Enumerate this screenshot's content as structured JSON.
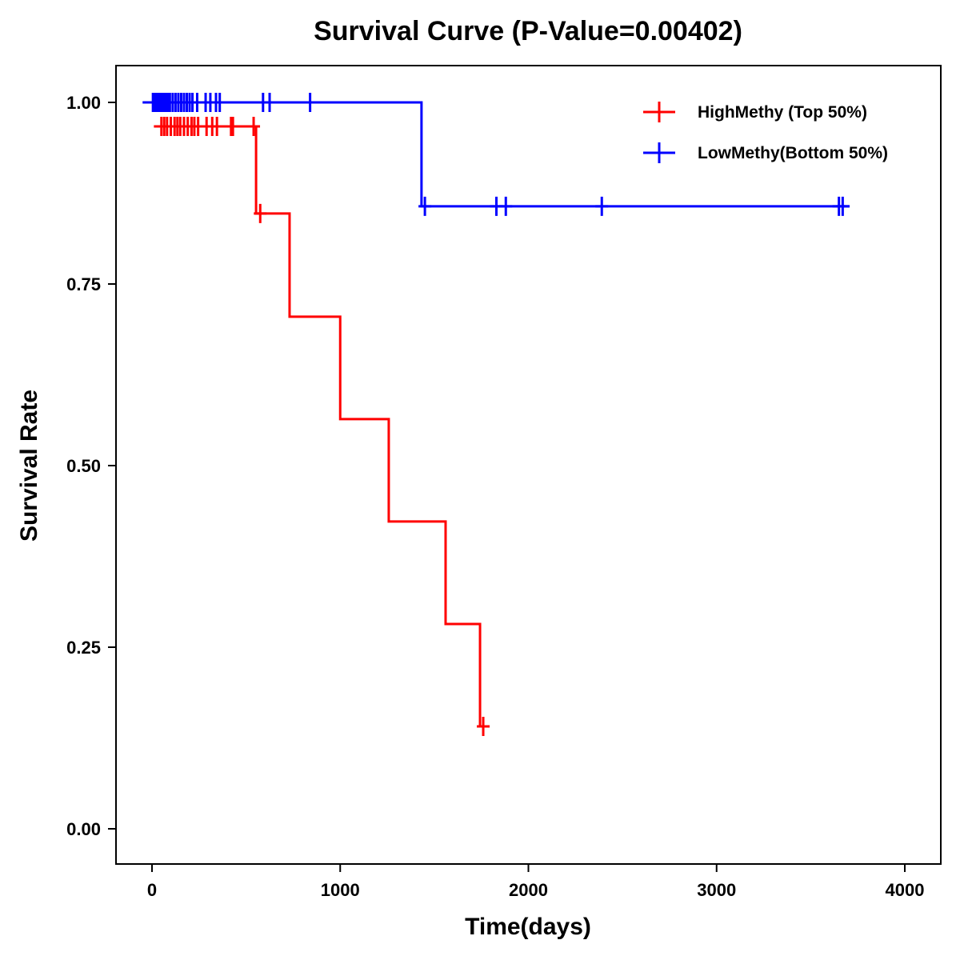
{
  "chart_data": {
    "type": "line",
    "title": "Survival Curve (P-Value=0.00402)",
    "xlabel": "Time(days)",
    "ylabel": "Survival Rate",
    "xlim": [
      -200,
      4200
    ],
    "ylim": [
      -0.05,
      1.05
    ],
    "xticks": [
      0,
      1000,
      2000,
      3000,
      4000
    ],
    "xtick_labels": [
      "0",
      "1000",
      "2000",
      "3000",
      "4000"
    ],
    "yticks": [
      0,
      0.25,
      0.5,
      0.75,
      1.0
    ],
    "ytick_labels": [
      "0.00",
      "0.25",
      "0.50",
      "0.75",
      "1.00"
    ],
    "grid": false,
    "legend_position": "top-right",
    "series": [
      {
        "name": "HighMethy (Top 50%)",
        "color": "#ff0000",
        "steps": [
          [
            10,
            0.967
          ],
          [
            553,
            0.847
          ],
          [
            731,
            0.705
          ],
          [
            1000,
            0.564
          ],
          [
            1258,
            0.423
          ],
          [
            1560,
            0.282
          ],
          [
            1743,
            0.141
          ]
        ],
        "end_time": 1770,
        "censored": [
          50,
          65,
          80,
          100,
          120,
          135,
          150,
          170,
          190,
          210,
          225,
          245,
          290,
          320,
          345,
          420,
          430,
          540,
          575,
          1760
        ],
        "censored_at": [
          0.967,
          0.967,
          0.967,
          0.967,
          0.967,
          0.967,
          0.967,
          0.967,
          0.967,
          0.967,
          0.967,
          0.967,
          0.967,
          0.967,
          0.967,
          0.967,
          0.967,
          0.967,
          0.847,
          0.141
        ]
      },
      {
        "name": "LowMethy(Bottom 50%)",
        "color": "#0000ff",
        "steps": [
          [
            -50,
            1.0
          ],
          [
            1432,
            0.857
          ]
        ],
        "end_time": 3707,
        "censored": [
          5,
          15,
          25,
          35,
          45,
          55,
          65,
          75,
          85,
          95,
          110,
          125,
          140,
          155,
          170,
          185,
          200,
          215,
          240,
          285,
          310,
          340,
          360,
          590,
          625,
          840,
          1450,
          1830,
          1880,
          2390,
          3650,
          3670
        ],
        "censored_at": [
          1,
          1,
          1,
          1,
          1,
          1,
          1,
          1,
          1,
          1,
          1,
          1,
          1,
          1,
          1,
          1,
          1,
          1,
          1,
          1,
          1,
          1,
          1,
          1,
          1,
          1,
          0.857,
          0.857,
          0.857,
          0.857,
          0.857,
          0.857
        ]
      }
    ]
  }
}
